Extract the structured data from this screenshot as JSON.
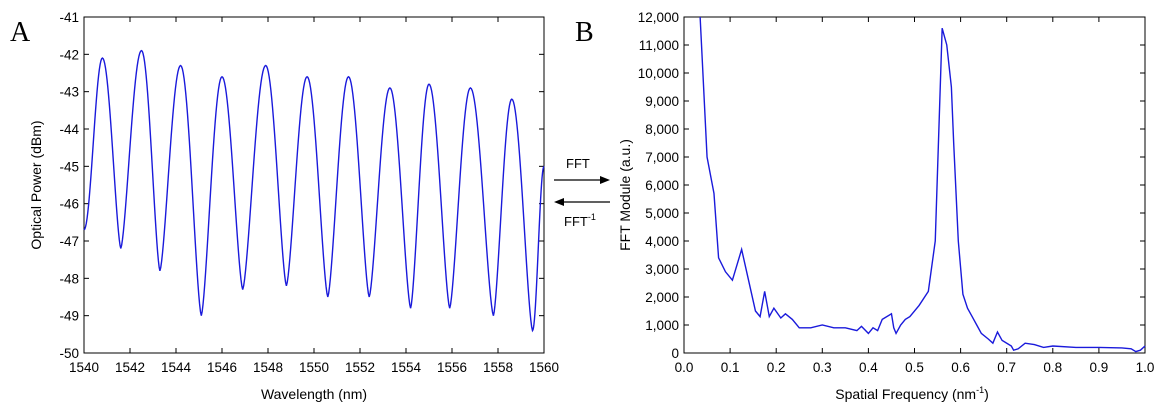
{
  "chart_data": [
    {
      "type": "line",
      "panel_label": "A",
      "xlabel": "Wavelength (nm)",
      "ylabel": "Optical Power (dBm)",
      "xlim": [
        1540,
        1560
      ],
      "ylim": [
        -50,
        -41
      ],
      "x_ticks": [
        "1540",
        "1542",
        "1544",
        "1546",
        "1548",
        "1550",
        "1552",
        "1554",
        "1556",
        "1558",
        "1560"
      ],
      "y_ticks": [
        "-41",
        "-42",
        "-43",
        "-44",
        "-45",
        "-46",
        "-47",
        "-48",
        "-49",
        "-50"
      ],
      "line_color": "#1a1adb",
      "grid": false,
      "series": [
        {
          "x": [
            1540.0,
            1540.8,
            1541.6,
            1542.5,
            1543.3,
            1544.2,
            1545.1,
            1546.0,
            1546.9,
            1547.9,
            1548.8,
            1549.7,
            1550.6,
            1551.5,
            1552.4,
            1553.3,
            1554.2,
            1555.0,
            1555.9,
            1556.8,
            1557.8,
            1558.6,
            1559.5,
            1560.0
          ],
          "y": [
            -46.7,
            -42.1,
            -47.2,
            -41.9,
            -47.8,
            -42.3,
            -49.0,
            -42.6,
            -48.3,
            -42.3,
            -48.2,
            -42.6,
            -48.5,
            -42.6,
            -48.5,
            -42.9,
            -48.8,
            -42.8,
            -48.8,
            -42.9,
            -49.0,
            -43.2,
            -49.4,
            -45.0
          ]
        }
      ]
    },
    {
      "type": "line",
      "panel_label": "B",
      "xlabel": "Spatial Frequency (nm",
      "xlabel_sup": "-1",
      "xlabel_tail": ")",
      "ylabel": "FFT Module (a.u.)",
      "xlim": [
        0.0,
        1.0
      ],
      "ylim": [
        0,
        12000
      ],
      "x_ticks": [
        "0.0",
        "0.1",
        "0.2",
        "0.3",
        "0.4",
        "0.5",
        "0.6",
        "0.7",
        "0.8",
        "0.9",
        "1.0"
      ],
      "y_ticks": [
        "0",
        "1,000",
        "2,000",
        "3,000",
        "4,000",
        "5,000",
        "6,000",
        "7,000",
        "8,000",
        "9,000",
        "10,000",
        "11,000",
        "12,000"
      ],
      "line_color": "#1a1adb",
      "grid": false,
      "series": [
        {
          "x": [
            0.035,
            0.038,
            0.05,
            0.065,
            0.075,
            0.09,
            0.105,
            0.125,
            0.14,
            0.155,
            0.165,
            0.175,
            0.185,
            0.195,
            0.21,
            0.22,
            0.235,
            0.25,
            0.275,
            0.3,
            0.325,
            0.35,
            0.375,
            0.385,
            0.4,
            0.41,
            0.42,
            0.43,
            0.45,
            0.455,
            0.46,
            0.47,
            0.48,
            0.49,
            0.51,
            0.53,
            0.545,
            0.56,
            0.57,
            0.58,
            0.585,
            0.595,
            0.605,
            0.615,
            0.625,
            0.635,
            0.645,
            0.66,
            0.67,
            0.68,
            0.69,
            0.71,
            0.715,
            0.725,
            0.74,
            0.76,
            0.78,
            0.8,
            0.85,
            0.9,
            0.95,
            0.97,
            0.98,
            0.99,
            1.0
          ],
          "y": [
            12000,
            11000,
            7000,
            5700,
            3400,
            2900,
            2600,
            3700,
            2600,
            1500,
            1300,
            2200,
            1300,
            1600,
            1250,
            1400,
            1200,
            900,
            900,
            1000,
            900,
            900,
            800,
            950,
            700,
            900,
            800,
            1200,
            1400,
            900,
            700,
            1000,
            1200,
            1300,
            1700,
            2200,
            4000,
            11600,
            11000,
            9500,
            7500,
            4000,
            2100,
            1600,
            1300,
            1000,
            700,
            500,
            350,
            750,
            450,
            250,
            100,
            150,
            350,
            300,
            200,
            250,
            200,
            200,
            180,
            150,
            50,
            100,
            250
          ]
        }
      ]
    }
  ],
  "arrows": {
    "forward_label": "FFT",
    "inverse_label": "FFT",
    "inverse_sup": "-1"
  }
}
